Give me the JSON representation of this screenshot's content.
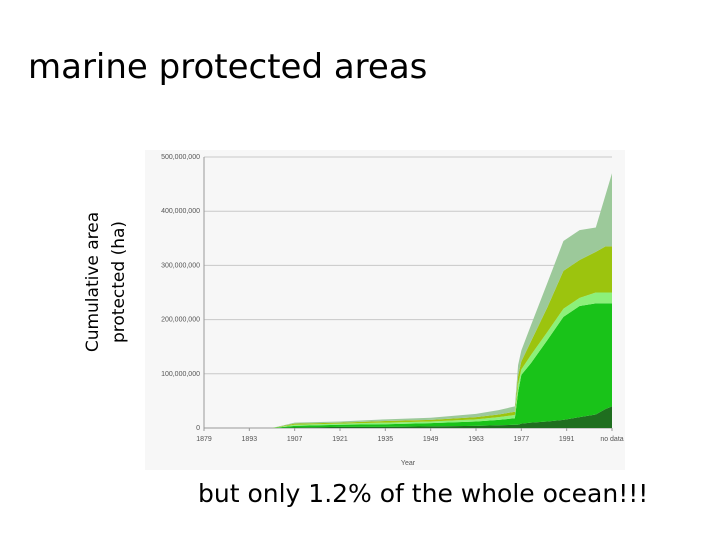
{
  "title": "marine protected areas",
  "caption": "but only 1.2% of the whole ocean!!!",
  "chart_data": {
    "type": "stacked-area",
    "y_label_lines": [
      "Cumulative area",
      "protected (ha)"
    ],
    "x_label": "Year",
    "x": [
      1900,
      1907,
      1921,
      1935,
      1949,
      1963,
      1970,
      1975,
      1976,
      1977,
      1980,
      1985,
      1990,
      1995,
      2000,
      2003,
      2005
    ],
    "xlim": [
      1879,
      2005
    ],
    "xticks": [
      1879,
      1893,
      1907,
      1921,
      1935,
      1949,
      1963,
      1977,
      1991,
      {
        "value": 2005,
        "label": "no data"
      }
    ],
    "ylim": [
      0,
      500000000
    ],
    "yticks": [
      0,
      {
        "value": 100000000,
        "label": "100,000,000"
      },
      {
        "value": 200000000,
        "label": "200,000,000"
      },
      {
        "value": 300000000,
        "label": "300,000,000"
      },
      {
        "value": 400000000,
        "label": "400,000,000"
      },
      {
        "value": 500000000,
        "label": "500,000,000"
      }
    ],
    "grid": true,
    "series": [
      {
        "color": "#1f6e1f",
        "values": [
          0,
          1000000,
          2000000,
          2000000,
          3000000,
          4000000,
          5000000,
          6000000,
          6000000,
          8000000,
          10000000,
          12000000,
          15000000,
          20000000,
          25000000,
          35000000,
          40000000
        ]
      },
      {
        "color": "#19c319",
        "values": [
          0,
          3000000,
          4000000,
          5000000,
          6000000,
          8000000,
          10000000,
          12000000,
          60000000,
          90000000,
          110000000,
          150000000,
          190000000,
          205000000,
          205000000,
          195000000,
          190000000
        ]
      },
      {
        "color": "#8cf07a",
        "values": [
          0,
          2000000,
          2000000,
          3000000,
          3000000,
          4000000,
          5000000,
          6000000,
          15000000,
          10000000,
          15000000,
          15000000,
          15000000,
          15000000,
          20000000,
          20000000,
          20000000
        ]
      },
      {
        "color": "#9cc40e",
        "values": [
          0,
          2000000,
          2000000,
          3000000,
          3000000,
          4000000,
          5000000,
          6000000,
          15000000,
          15000000,
          25000000,
          45000000,
          70000000,
          70000000,
          75000000,
          85000000,
          85000000
        ]
      },
      {
        "color": "#9cc99a",
        "values": [
          0,
          2000000,
          2000000,
          3000000,
          4000000,
          6000000,
          8000000,
          10000000,
          20000000,
          20000000,
          30000000,
          45000000,
          55000000,
          55000000,
          45000000,
          95000000,
          135000000
        ]
      }
    ]
  }
}
